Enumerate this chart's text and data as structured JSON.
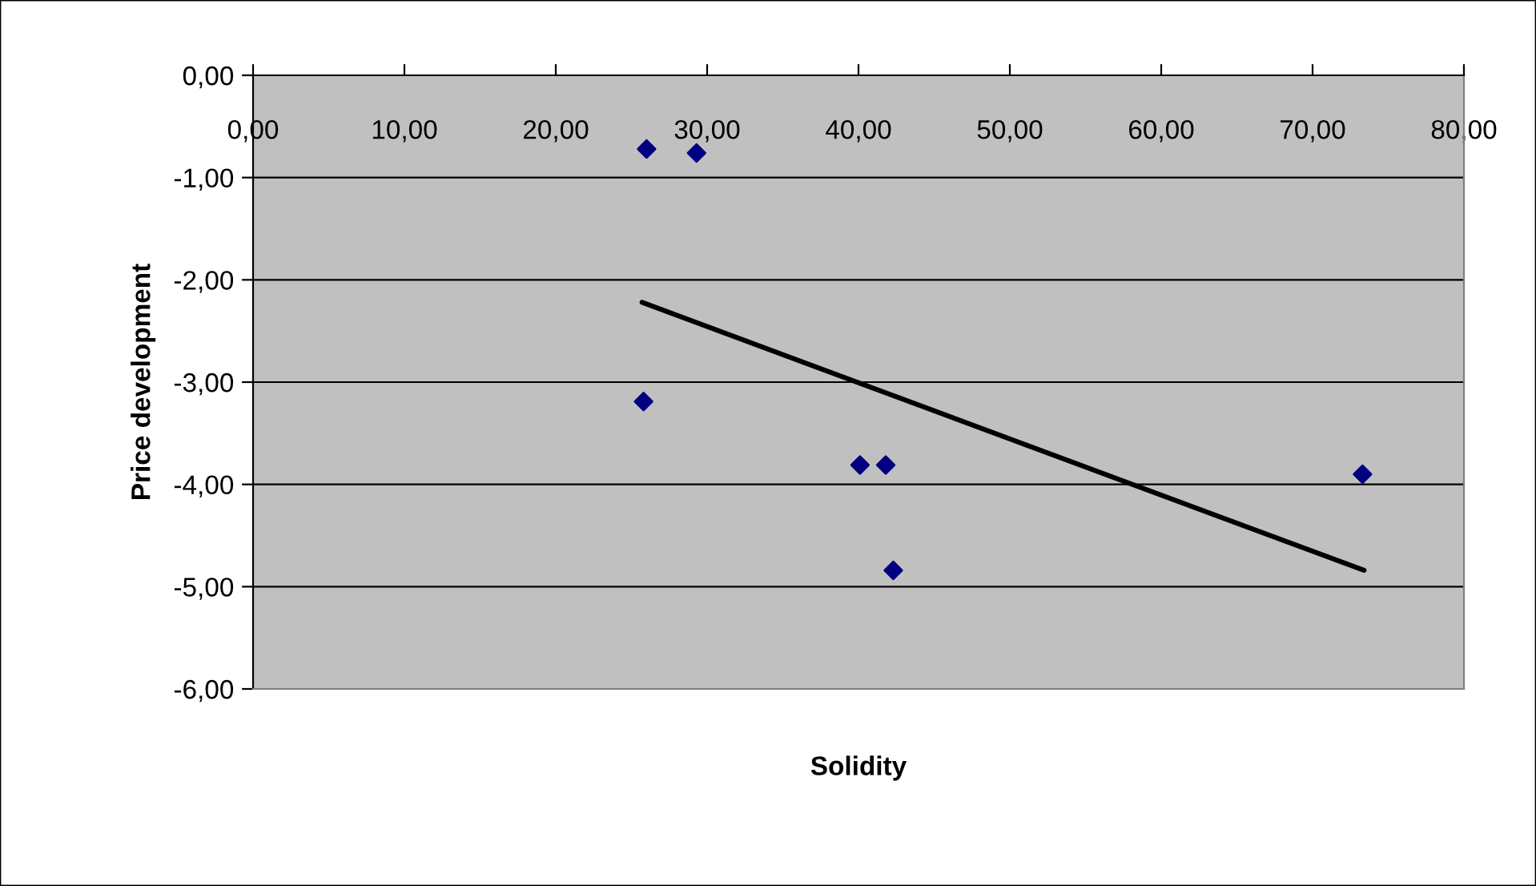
{
  "chart_data": {
    "type": "scatter",
    "xlabel": "Solidity",
    "ylabel": "Price development",
    "xlim": [
      0,
      80
    ],
    "ylim": [
      -6,
      0
    ],
    "xticks": [
      {
        "value": 0,
        "label": "0,00"
      },
      {
        "value": 10,
        "label": "10,00"
      },
      {
        "value": 20,
        "label": "20,00"
      },
      {
        "value": 30,
        "label": "30,00"
      },
      {
        "value": 40,
        "label": "40,00"
      },
      {
        "value": 50,
        "label": "50,00"
      },
      {
        "value": 60,
        "label": "60,00"
      },
      {
        "value": 70,
        "label": "70,00"
      },
      {
        "value": 80,
        "label": "80,00"
      }
    ],
    "yticks": [
      {
        "value": 0,
        "label": "0,00"
      },
      {
        "value": -1,
        "label": "-1,00"
      },
      {
        "value": -2,
        "label": "-2,00"
      },
      {
        "value": -3,
        "label": "-3,00"
      },
      {
        "value": -4,
        "label": "-4,00"
      },
      {
        "value": -5,
        "label": "-5,00"
      },
      {
        "value": -6,
        "label": "-6,00"
      }
    ],
    "grid": "y",
    "legend": false,
    "series": [
      {
        "color": "#000080",
        "marker": "diamond",
        "x": [
          26.0,
          29.3,
          25.8,
          40.1,
          41.8,
          42.3,
          73.3
        ],
        "values": [
          -0.72,
          -0.76,
          -3.19,
          -3.81,
          -3.81,
          -4.84,
          -3.9
        ]
      },
      {
        "type": "line",
        "color": "#000000",
        "marker": "none",
        "line_style": "solid",
        "x": [
          25.7,
          73.4
        ],
        "values": [
          -2.22,
          -4.84
        ]
      }
    ]
  }
}
